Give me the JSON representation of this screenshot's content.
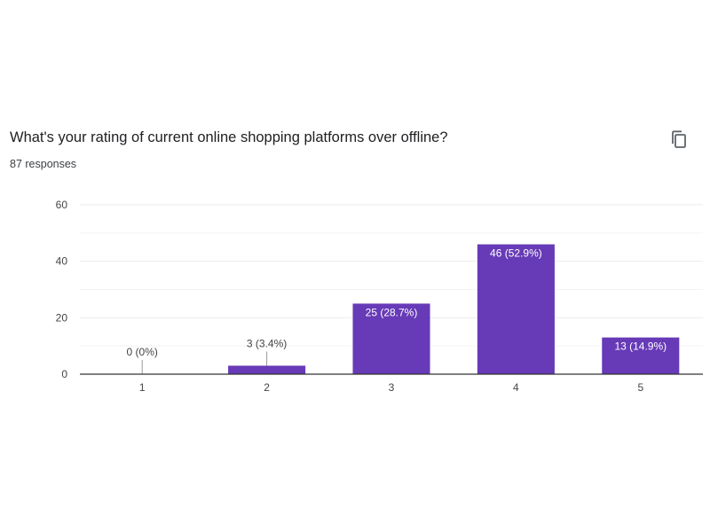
{
  "question": {
    "title": "What's your rating of current online shopping platforms over offline?",
    "responses": "87 responses"
  },
  "copy_button": {
    "icon": "copy-icon"
  },
  "colors": {
    "bar": "#673ab7",
    "grid": "#ebebeb",
    "axis": "#333333"
  },
  "chart_data": {
    "type": "bar",
    "categories": [
      "1",
      "2",
      "3",
      "4",
      "5"
    ],
    "values": [
      0,
      3,
      25,
      46,
      13
    ],
    "value_labels": [
      "0 (0%)",
      "3 (3.4%)",
      "25 (28.7%)",
      "46 (52.9%)",
      "13 (14.9%)"
    ],
    "ylim": [
      0,
      60
    ],
    "yticks": [
      0,
      20,
      40,
      60
    ],
    "grid": true,
    "legend": "none",
    "title": "",
    "xlabel": "",
    "ylabel": ""
  }
}
